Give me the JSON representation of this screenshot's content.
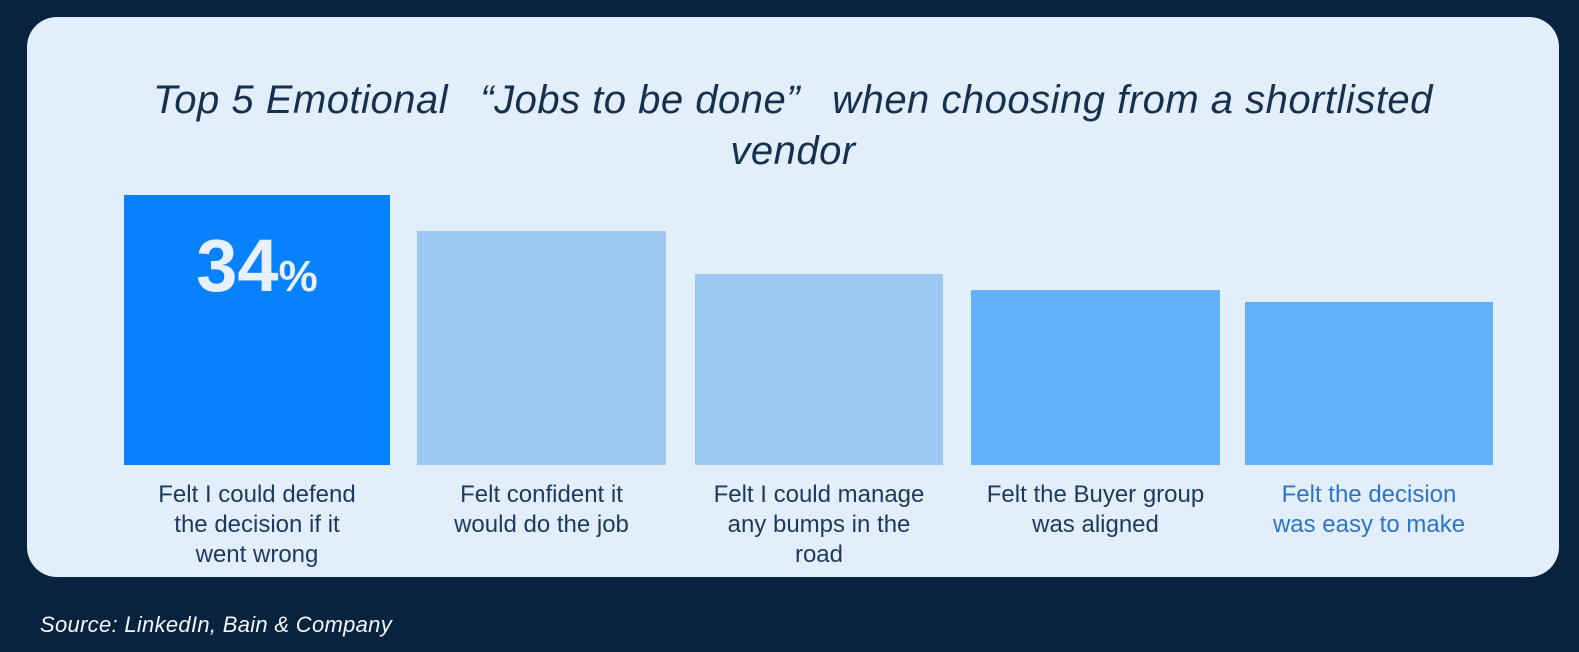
{
  "page": {
    "background_color": "#07233E",
    "card_background_color": "#E2EEFA"
  },
  "header": {
    "title": "Top 5 Emotional  “Jobs to be done”  when choosing from a shortlisted vendor",
    "title_color": "#15314E"
  },
  "footer": {
    "source": "Source: LinkedIn, Bain & Company"
  },
  "chart_data": {
    "type": "bar",
    "title": "Top 5 Emotional “Jobs to be done” when choosing from a shortlisted vendor",
    "categories": [
      "Felt I could defend the decision if it went wrong",
      "Felt confident it would do the job",
      "Felt I could manage any bumps in the road",
      "Felt the Buyer group was aligned",
      "Felt the decision was easy to make"
    ],
    "values": [
      34,
      29.5,
      24,
      22,
      20.5
    ],
    "value_labels": [
      "34%",
      "",
      "",
      "",
      ""
    ],
    "ylim": [
      0,
      34
    ],
    "grid": false,
    "axes_shown": false,
    "legend": "none",
    "source": "Source: LinkedIn, Bain & Company",
    "bars": [
      {
        "label_lines": [
          "Felt I could defend",
          "the decision if it",
          "went wrong"
        ],
        "value": 34,
        "display_value": "34",
        "display_unit": "%",
        "color": "#0781FC",
        "label_color": "#1C3A5E",
        "value_color": "#E8F0FB"
      },
      {
        "label_lines": [
          "Felt confident it",
          "would do the job"
        ],
        "value": 29.5,
        "display_value": "",
        "display_unit": "",
        "color": "#9DC8F2",
        "label_color": "#1C3A5E",
        "value_color": ""
      },
      {
        "label_lines": [
          "Felt I could manage",
          "any bumps in the",
          "road"
        ],
        "value": 24,
        "display_value": "",
        "display_unit": "",
        "color": "#9DC8F2",
        "label_color": "#1C3A5E",
        "value_color": ""
      },
      {
        "label_lines": [
          "Felt the Buyer group",
          "was aligned"
        ],
        "value": 22,
        "display_value": "",
        "display_unit": "",
        "color": "#62B0FC",
        "label_color": "#1C3A5E",
        "value_color": ""
      },
      {
        "label_lines": [
          "Felt the decision",
          "was easy to make"
        ],
        "value": 20.5,
        "display_value": "",
        "display_unit": "",
        "color": "#62B0FC",
        "label_color": "#2E74C4",
        "value_color": ""
      }
    ]
  }
}
